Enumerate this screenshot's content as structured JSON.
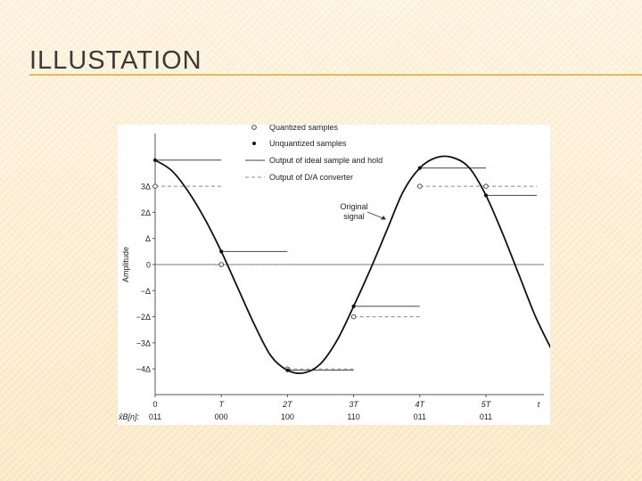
{
  "slide": {
    "title": "ILLUSTATION"
  },
  "chart_data": {
    "type": "line",
    "ylabel": "Amplitude",
    "x_ticks": [
      "0",
      "T",
      "2T",
      "3T",
      "4T",
      "5T",
      "t"
    ],
    "y_ticks": [
      "3Δ",
      "2Δ",
      "Δ",
      "0",
      "−Δ",
      "−2Δ",
      "−3Δ",
      "−4Δ"
    ],
    "codes_label": "x̂B[n]:",
    "codes": [
      "011",
      "000",
      "100",
      "110",
      "011",
      "011"
    ],
    "legend": [
      {
        "label": "Quantized samples",
        "marker": "open-circle"
      },
      {
        "label": "Unquantized samples",
        "marker": "filled-dot"
      },
      {
        "label": "Output of ideal sample and hold",
        "marker": "solid-line"
      },
      {
        "label": "Output of D/A converter",
        "marker": "dashed-line"
      }
    ],
    "annotation": {
      "line1": "Original",
      "line2": "signal"
    },
    "series": [
      {
        "name": "Original signal",
        "x": [
          0,
          0.25,
          0.5,
          0.75,
          1,
          1.25,
          1.5,
          1.75,
          2,
          2.25,
          2.5,
          2.75,
          3,
          3.25,
          3.5,
          3.75,
          4,
          4.25,
          4.5,
          4.75,
          5,
          5.25,
          5.5,
          5.75,
          6
        ],
        "y": [
          4.0,
          3.6,
          2.8,
          1.75,
          0.5,
          -0.9,
          -2.3,
          -3.5,
          -4.05,
          -4.15,
          -3.8,
          -2.9,
          -1.6,
          -0.2,
          1.3,
          2.8,
          3.7,
          4.1,
          4.1,
          3.7,
          2.65,
          1.2,
          -0.4,
          -2.0,
          -3.3
        ]
      }
    ],
    "unquantized_samples": {
      "n": [
        0,
        1,
        2,
        3,
        4,
        5
      ],
      "values": [
        4.0,
        0.5,
        -4.05,
        -1.6,
        3.7,
        2.65
      ]
    },
    "quantized_samples": {
      "n": [
        0,
        1,
        2,
        3,
        4,
        5
      ],
      "values": [
        3,
        0,
        -4,
        -2,
        3,
        3
      ]
    }
  }
}
